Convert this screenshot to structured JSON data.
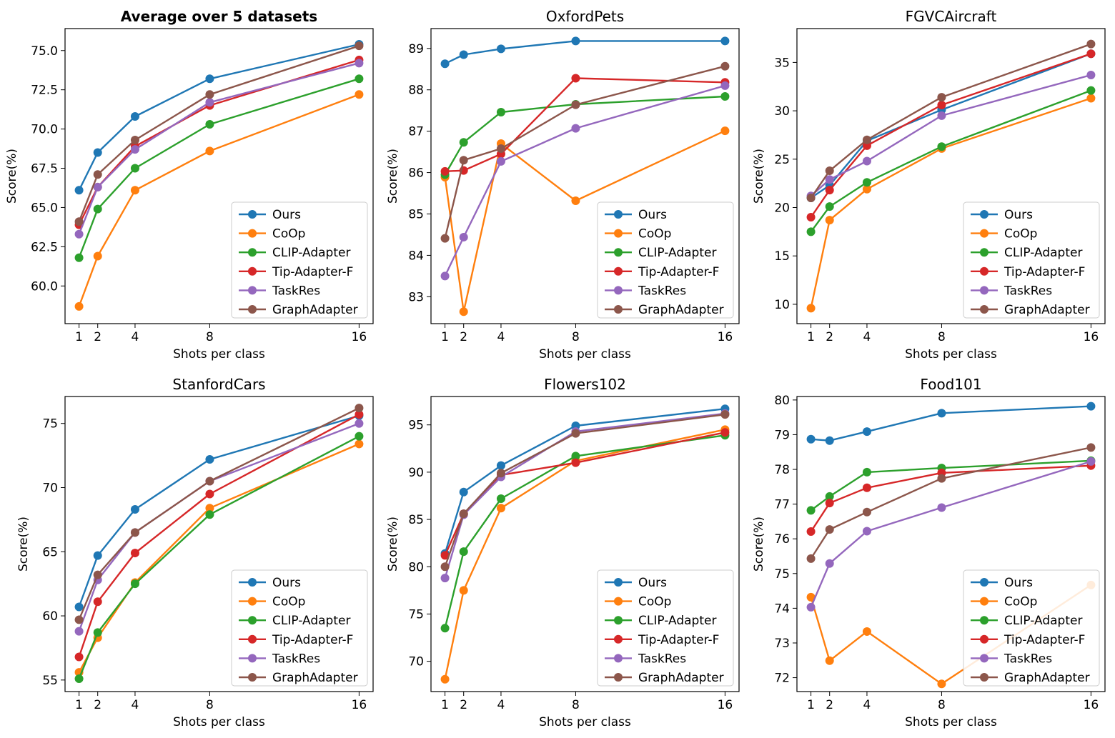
{
  "legend_order": [
    "Ours",
    "CoOp",
    "CLIP-Adapter",
    "Tip-Adapter-F",
    "TaskRes",
    "GraphAdapter"
  ],
  "colors": {
    "Ours": "#1f77b4",
    "CoOp": "#ff7f0e",
    "CLIP-Adapter": "#2ca02c",
    "Tip-Adapter-F": "#d62728",
    "TaskRes": "#9467bd",
    "GraphAdapter": "#8c564b"
  },
  "chart_data": [
    {
      "type": "line",
      "title": "Average over 5 datasets",
      "title_bold": true,
      "xlabel": "Shots per class",
      "ylabel": "Score(%)",
      "x": [
        1,
        2,
        4,
        8,
        16
      ],
      "xticks": [
        "1",
        "2",
        "4",
        "8",
        "16"
      ],
      "xlim": [
        0.25,
        16.75
      ],
      "ylim": [
        57.6,
        76.4
      ],
      "yticks": [
        "60.0",
        "62.5",
        "65.0",
        "67.5",
        "70.0",
        "72.5",
        "75.0"
      ],
      "ytick_values": [
        60.0,
        62.5,
        65.0,
        67.5,
        70.0,
        72.5,
        75.0
      ],
      "legend_position": "lower-right",
      "series": [
        {
          "name": "Ours",
          "values": [
            66.1,
            68.5,
            70.8,
            73.2,
            75.4
          ]
        },
        {
          "name": "CoOp",
          "values": [
            58.7,
            61.9,
            66.1,
            68.6,
            72.2
          ]
        },
        {
          "name": "CLIP-Adapter",
          "values": [
            61.8,
            64.9,
            67.5,
            70.3,
            73.2
          ]
        },
        {
          "name": "Tip-Adapter-F",
          "values": [
            63.9,
            66.3,
            68.9,
            71.5,
            74.4
          ]
        },
        {
          "name": "TaskRes",
          "values": [
            63.3,
            66.3,
            68.7,
            71.7,
            74.2
          ]
        },
        {
          "name": "GraphAdapter",
          "values": [
            64.1,
            67.1,
            69.3,
            72.2,
            75.3
          ]
        }
      ]
    },
    {
      "type": "line",
      "title": "OxfordPets",
      "title_bold": false,
      "xlabel": "Shots per class",
      "ylabel": "Score(%)",
      "x": [
        1,
        2,
        4,
        8,
        16
      ],
      "xticks": [
        "1",
        "2",
        "4",
        "8",
        "16"
      ],
      "xlim": [
        0.25,
        16.75
      ],
      "ylim": [
        82.35,
        89.48
      ],
      "yticks": [
        "83",
        "84",
        "85",
        "86",
        "87",
        "88",
        "89"
      ],
      "ytick_values": [
        83,
        84,
        85,
        86,
        87,
        88,
        89
      ],
      "legend_position": "lower-right",
      "series": [
        {
          "name": "Ours",
          "values": [
            88.63,
            88.85,
            88.99,
            89.18,
            89.18
          ]
        },
        {
          "name": "CoOp",
          "values": [
            85.89,
            82.64,
            86.7,
            85.32,
            87.01
          ]
        },
        {
          "name": "CLIP-Adapter",
          "values": [
            85.95,
            86.73,
            87.46,
            87.65,
            87.84
          ]
        },
        {
          "name": "Tip-Adapter-F",
          "values": [
            86.03,
            86.05,
            86.45,
            88.28,
            88.18
          ]
        },
        {
          "name": "TaskRes",
          "values": [
            83.5,
            84.44,
            86.27,
            87.07,
            88.1
          ]
        },
        {
          "name": "GraphAdapter",
          "values": [
            84.41,
            86.3,
            86.58,
            87.64,
            88.57
          ]
        }
      ]
    },
    {
      "type": "line",
      "title": "FGVCAircraft",
      "title_bold": false,
      "xlabel": "Shots per class",
      "ylabel": "Score(%)",
      "x": [
        1,
        2,
        4,
        8,
        16
      ],
      "xticks": [
        "1",
        "2",
        "4",
        "8",
        "16"
      ],
      "xlim": [
        0.25,
        16.75
      ],
      "ylim": [
        8.0,
        38.5
      ],
      "yticks": [
        "10",
        "15",
        "20",
        "25",
        "30",
        "35"
      ],
      "ytick_values": [
        10,
        15,
        20,
        25,
        30,
        35
      ],
      "legend_position": "lower-right",
      "series": [
        {
          "name": "Ours",
          "values": [
            21.0,
            22.3,
            26.9,
            30.1,
            35.9
          ]
        },
        {
          "name": "CoOp",
          "values": [
            9.6,
            18.7,
            21.9,
            26.1,
            31.3
          ]
        },
        {
          "name": "CLIP-Adapter",
          "values": [
            17.5,
            20.1,
            22.6,
            26.3,
            32.1
          ]
        },
        {
          "name": "Tip-Adapter-F",
          "values": [
            19.0,
            21.8,
            26.4,
            30.6,
            35.9
          ]
        },
        {
          "name": "TaskRes",
          "values": [
            21.2,
            22.9,
            24.8,
            29.5,
            33.7
          ]
        },
        {
          "name": "GraphAdapter",
          "values": [
            21.0,
            23.8,
            27.0,
            31.4,
            36.9
          ]
        }
      ]
    },
    {
      "type": "line",
      "title": "StanfordCars",
      "title_bold": false,
      "xlabel": "Shots per class",
      "ylabel": "Score(%)",
      "x": [
        1,
        2,
        4,
        8,
        16
      ],
      "xticks": [
        "1",
        "2",
        "4",
        "8",
        "16"
      ],
      "xlim": [
        0.25,
        16.75
      ],
      "ylim": [
        54.1,
        77.1
      ],
      "yticks": [
        "55",
        "60",
        "65",
        "70",
        "75"
      ],
      "ytick_values": [
        55,
        60,
        65,
        70,
        75
      ],
      "legend_position": "lower-right",
      "series": [
        {
          "name": "Ours",
          "values": [
            60.7,
            64.7,
            68.3,
            72.2,
            75.6
          ]
        },
        {
          "name": "CoOp",
          "values": [
            55.6,
            58.3,
            62.6,
            68.4,
            73.4
          ]
        },
        {
          "name": "CLIP-Adapter",
          "values": [
            55.1,
            58.7,
            62.5,
            67.9,
            74.0
          ]
        },
        {
          "name": "Tip-Adapter-F",
          "values": [
            56.8,
            61.1,
            64.9,
            69.5,
            75.7
          ]
        },
        {
          "name": "TaskRes",
          "values": [
            58.8,
            62.8,
            66.5,
            70.5,
            75.0
          ]
        },
        {
          "name": "GraphAdapter",
          "values": [
            59.7,
            63.2,
            66.5,
            70.5,
            76.2
          ]
        }
      ]
    },
    {
      "type": "line",
      "title": "Flowers102",
      "title_bold": false,
      "xlabel": "Shots per class",
      "ylabel": "Score(%)",
      "x": [
        1,
        2,
        4,
        8,
        16
      ],
      "xticks": [
        "1",
        "2",
        "4",
        "8",
        "16"
      ],
      "xlim": [
        0.25,
        16.75
      ],
      "ylim": [
        66.8,
        98.0
      ],
      "yticks": [
        "70",
        "75",
        "80",
        "85",
        "90",
        "95"
      ],
      "ytick_values": [
        70,
        75,
        80,
        85,
        90,
        95
      ],
      "legend_position": "lower-right",
      "series": [
        {
          "name": "Ours",
          "values": [
            81.4,
            87.9,
            90.7,
            94.9,
            96.7
          ]
        },
        {
          "name": "CoOp",
          "values": [
            68.1,
            77.5,
            86.2,
            91.2,
            94.5
          ]
        },
        {
          "name": "CLIP-Adapter",
          "values": [
            73.5,
            81.6,
            87.2,
            91.7,
            93.9
          ]
        },
        {
          "name": "Tip-Adapter-F",
          "values": [
            81.2,
            85.6,
            89.7,
            91.0,
            94.2
          ]
        },
        {
          "name": "TaskRes",
          "values": [
            78.8,
            85.5,
            89.5,
            94.3,
            96.2
          ]
        },
        {
          "name": "GraphAdapter",
          "values": [
            80.0,
            85.6,
            89.9,
            94.1,
            96.1
          ]
        }
      ]
    },
    {
      "type": "line",
      "title": "Food101",
      "title_bold": false,
      "xlabel": "Shots per class",
      "ylabel": "Score(%)",
      "x": [
        1,
        2,
        4,
        8,
        16
      ],
      "xticks": [
        "1",
        "2",
        "4",
        "8",
        "16"
      ],
      "xlim": [
        0.25,
        16.75
      ],
      "ylim": [
        71.6,
        80.1
      ],
      "yticks": [
        "72",
        "73",
        "74",
        "75",
        "76",
        "77",
        "78",
        "79",
        "80"
      ],
      "ytick_values": [
        72,
        73,
        74,
        75,
        76,
        77,
        78,
        79,
        80
      ],
      "legend_position": "lower-right",
      "series": [
        {
          "name": "Ours",
          "values": [
            78.87,
            78.83,
            79.09,
            79.62,
            79.82
          ]
        },
        {
          "name": "CoOp",
          "values": [
            74.32,
            72.49,
            73.33,
            71.82,
            74.67
          ]
        },
        {
          "name": "CLIP-Adapter",
          "values": [
            76.82,
            77.22,
            77.92,
            78.04,
            78.25
          ]
        },
        {
          "name": "Tip-Adapter-F",
          "values": [
            76.21,
            77.03,
            77.47,
            77.9,
            78.11
          ]
        },
        {
          "name": "TaskRes",
          "values": [
            74.03,
            75.29,
            76.22,
            76.9,
            78.23
          ]
        },
        {
          "name": "GraphAdapter",
          "values": [
            75.43,
            76.27,
            76.77,
            77.74,
            78.63
          ]
        }
      ]
    }
  ]
}
